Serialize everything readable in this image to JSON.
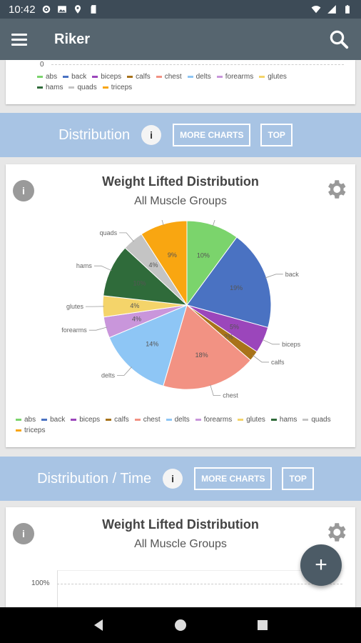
{
  "status_bar": {
    "time": "10:42"
  },
  "app_bar": {
    "title": "Riker"
  },
  "top_card": {
    "axis_zero": "0",
    "legend": [
      {
        "label": "abs",
        "color": "#7bd46c"
      },
      {
        "label": "back",
        "color": "#4a72c2"
      },
      {
        "label": "biceps",
        "color": "#9b46bb"
      },
      {
        "label": "calfs",
        "color": "#a8731a"
      },
      {
        "label": "chest",
        "color": "#f29283"
      },
      {
        "label": "delts",
        "color": "#8ec6f5"
      },
      {
        "label": "forearms",
        "color": "#c996db"
      },
      {
        "label": "glutes",
        "color": "#f4d46a"
      },
      {
        "label": "hams",
        "color": "#2f6b3a"
      },
      {
        "label": "quads",
        "color": "#c4c4c4"
      },
      {
        "label": "triceps",
        "color": "#f9a611"
      }
    ]
  },
  "section_distribution": {
    "title": "Distribution",
    "info": "i",
    "more_charts": "MORE CHARTS",
    "top": "TOP"
  },
  "distribution_card": {
    "info": "i",
    "title": "Weight Lifted Distribution",
    "subtitle": "All Muscle Groups",
    "legend": [
      {
        "label": "abs",
        "color": "#7bd46c"
      },
      {
        "label": "back",
        "color": "#4a72c2"
      },
      {
        "label": "biceps",
        "color": "#9b46bb"
      },
      {
        "label": "calfs",
        "color": "#a8731a"
      },
      {
        "label": "chest",
        "color": "#f29283"
      },
      {
        "label": "delts",
        "color": "#8ec6f5"
      },
      {
        "label": "forearms",
        "color": "#c996db"
      },
      {
        "label": "glutes",
        "color": "#f4d46a"
      },
      {
        "label": "hams",
        "color": "#2f6b3a"
      },
      {
        "label": "quads",
        "color": "#c4c4c4"
      },
      {
        "label": "triceps",
        "color": "#f9a611"
      }
    ]
  },
  "chart_data": {
    "type": "pie",
    "title": "Weight Lifted Distribution",
    "subtitle": "All Muscle Groups",
    "legend_position": "bottom",
    "slices": [
      {
        "label": "abs",
        "value": 10,
        "value_label": "10%",
        "color": "#7bd46c"
      },
      {
        "label": "back",
        "value": 19,
        "value_label": "19%",
        "color": "#4a72c2"
      },
      {
        "label": "biceps",
        "value": 5,
        "value_label": "5%",
        "color": "#9b46bb"
      },
      {
        "label": "calfs",
        "value": 2,
        "value_label": "2%",
        "color": "#a8731a"
      },
      {
        "label": "chest",
        "value": 18,
        "value_label": "18%",
        "color": "#f29283"
      },
      {
        "label": "delts",
        "value": 14,
        "value_label": "14%",
        "color": "#8ec6f5"
      },
      {
        "label": "forearms",
        "value": 4,
        "value_label": "4%",
        "color": "#c996db"
      },
      {
        "label": "glutes",
        "value": 4,
        "value_label": "4%",
        "color": "#f4d46a"
      },
      {
        "label": "hams",
        "value": 10,
        "value_label": "10%",
        "color": "#2f6b3a"
      },
      {
        "label": "quads",
        "value": 4,
        "value_label": "4%",
        "color": "#c4c4c4"
      },
      {
        "label": "triceps",
        "value": 9,
        "value_label": "9%",
        "color": "#f9a611"
      }
    ]
  },
  "section_distribution_time": {
    "title": "Distribution / Time",
    "info": "i",
    "more_charts": "MORE CHARTS",
    "top": "TOP"
  },
  "distribution_time_card": {
    "info": "i",
    "title": "Weight Lifted Distribution",
    "subtitle": "All Muscle Groups",
    "y_tick": "100%"
  },
  "fab": {
    "label": "+"
  },
  "colors": {
    "app_bar": "#56656f",
    "status_bar": "#3d4b57",
    "section_bar": "#a8c4e4",
    "fab": "#4c5b66"
  }
}
